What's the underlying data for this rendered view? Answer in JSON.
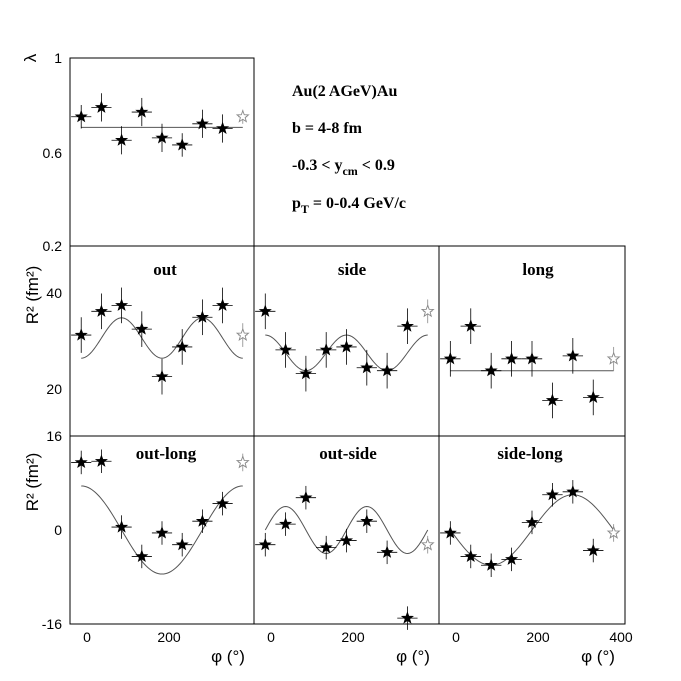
{
  "info": {
    "system": "Au(2 AGeV)Au",
    "impact": "b = 4-8 fm",
    "rapidity_pre": "-0.3 < y",
    "rapidity_sub": "cm",
    "rapidity_post": " < 0.9",
    "pt_pre": "p",
    "pt_sub": "T",
    "pt_post": " = 0-0.4 GeV/c"
  },
  "axes": {
    "lambda_label": "λ",
    "r2_label_top": "R² (fm²)",
    "r2_label_bottom": "R² (fm²)",
    "x_label": "φ (°)",
    "lambda_ticks": [
      "1",
      "0.6",
      "0.2"
    ],
    "r2_top_ticks": [
      "40",
      "20"
    ],
    "r2_bottom_ticks": [
      "16",
      "0",
      "-16"
    ],
    "x_ticks_left": [
      "0",
      "200"
    ],
    "x_ticks_mid": [
      "0",
      "200"
    ],
    "x_ticks_right": [
      "0",
      "200",
      "400"
    ]
  },
  "colors": {
    "marker": "#000000",
    "open_marker": "#888888",
    "fit": "#555555",
    "frame": "#000000"
  },
  "chart_data": [
    {
      "type": "scatter",
      "title": "",
      "ylabel": "λ",
      "xlabel": "",
      "xlim": [
        -25,
        385
      ],
      "ylim": [
        0.2,
        1.0
      ],
      "x": [
        0,
        45,
        90,
        135,
        180,
        225,
        270,
        315,
        360
      ],
      "y": [
        0.75,
        0.79,
        0.65,
        0.77,
        0.66,
        0.63,
        0.72,
        0.7,
        0.75
      ],
      "yerr": [
        0.05,
        0.06,
        0.06,
        0.06,
        0.06,
        0.05,
        0.06,
        0.06,
        0.03
      ],
      "fit": {
        "kind": "constant",
        "value": 0.705
      }
    },
    {
      "type": "scatter",
      "title": "out",
      "ylabel": "R² (fm²)",
      "xlabel": "",
      "xlim": [
        -25,
        385
      ],
      "ylim": [
        16,
        48
      ],
      "x": [
        0,
        45,
        90,
        135,
        180,
        225,
        270,
        315,
        360
      ],
      "y": [
        33.0,
        37.0,
        38.0,
        34.0,
        26.0,
        31.0,
        36.0,
        38.0,
        33.0
      ],
      "yerr": [
        3,
        3,
        3,
        3,
        3,
        3,
        3,
        3,
        2
      ],
      "fit": {
        "kind": "cos2",
        "mean": 32.5,
        "amp": -3.4
      }
    },
    {
      "type": "scatter",
      "title": "side",
      "ylabel": "",
      "xlabel": "",
      "xlim": [
        -25,
        385
      ],
      "ylim": [
        16,
        48
      ],
      "x": [
        0,
        45,
        90,
        135,
        180,
        225,
        270,
        315,
        360
      ],
      "y": [
        37.0,
        30.5,
        26.5,
        30.5,
        31.0,
        27.5,
        27.0,
        34.5,
        37.0
      ],
      "yerr": [
        3,
        3,
        3,
        3,
        3,
        3,
        3,
        3,
        2
      ],
      "fit": {
        "kind": "cos2",
        "mean": 30.0,
        "amp": 3.0
      }
    },
    {
      "type": "scatter",
      "title": "long",
      "ylabel": "",
      "xlabel": "",
      "xlim": [
        -25,
        385
      ],
      "ylim": [
        16,
        48
      ],
      "x": [
        0,
        45,
        90,
        135,
        180,
        225,
        270,
        315,
        360
      ],
      "y": [
        29.0,
        34.5,
        27.0,
        29.0,
        29.0,
        22.0,
        29.5,
        22.5,
        29.0
      ],
      "yerr": [
        3,
        3,
        3,
        3,
        3,
        3,
        3,
        3,
        2
      ],
      "fit": {
        "kind": "constant",
        "value": 27.0
      }
    },
    {
      "type": "scatter",
      "title": "out-long",
      "ylabel": "R² (fm²)",
      "xlabel": "φ (°)",
      "xlim": [
        -25,
        385
      ],
      "ylim": [
        -16,
        16
      ],
      "x": [
        0,
        45,
        90,
        135,
        180,
        225,
        270,
        315,
        360
      ],
      "y": [
        11.5,
        11.7,
        0.5,
        -4.5,
        -0.5,
        -2.5,
        1.5,
        4.5,
        11.5
      ],
      "yerr": [
        2,
        2,
        2,
        2,
        2,
        2,
        2,
        2,
        1.5
      ],
      "fit": {
        "kind": "cos1",
        "mean": 0.0,
        "amp": 7.5
      }
    },
    {
      "type": "scatter",
      "title": "out-side",
      "ylabel": "",
      "xlabel": "φ (°)",
      "xlim": [
        -25,
        385
      ],
      "ylim": [
        -16,
        16
      ],
      "x": [
        0,
        45,
        90,
        135,
        180,
        225,
        270,
        315,
        360
      ],
      "y": [
        -2.5,
        1.0,
        5.5,
        -3.0,
        -1.8,
        1.5,
        -3.8,
        -15.0,
        -2.5
      ],
      "yerr": [
        2,
        2,
        2,
        2,
        2,
        2,
        2,
        2,
        1.5
      ],
      "fit": {
        "kind": "sin2",
        "mean": 0.0,
        "amp": 4.0
      }
    },
    {
      "type": "scatter",
      "title": "side-long",
      "ylabel": "",
      "xlabel": "φ (°)",
      "xlim": [
        -25,
        385
      ],
      "ylim": [
        -16,
        16
      ],
      "x": [
        0,
        45,
        90,
        135,
        180,
        225,
        270,
        315,
        360
      ],
      "y": [
        -0.5,
        -4.5,
        -6.0,
        -5.0,
        1.3,
        6.0,
        6.5,
        -3.5,
        -0.5
      ],
      "yerr": [
        2,
        2,
        2,
        2,
        2,
        2,
        2,
        2,
        1.5
      ],
      "fit": {
        "kind": "sin1",
        "mean": 0.0,
        "amp": -6.0
      }
    }
  ]
}
